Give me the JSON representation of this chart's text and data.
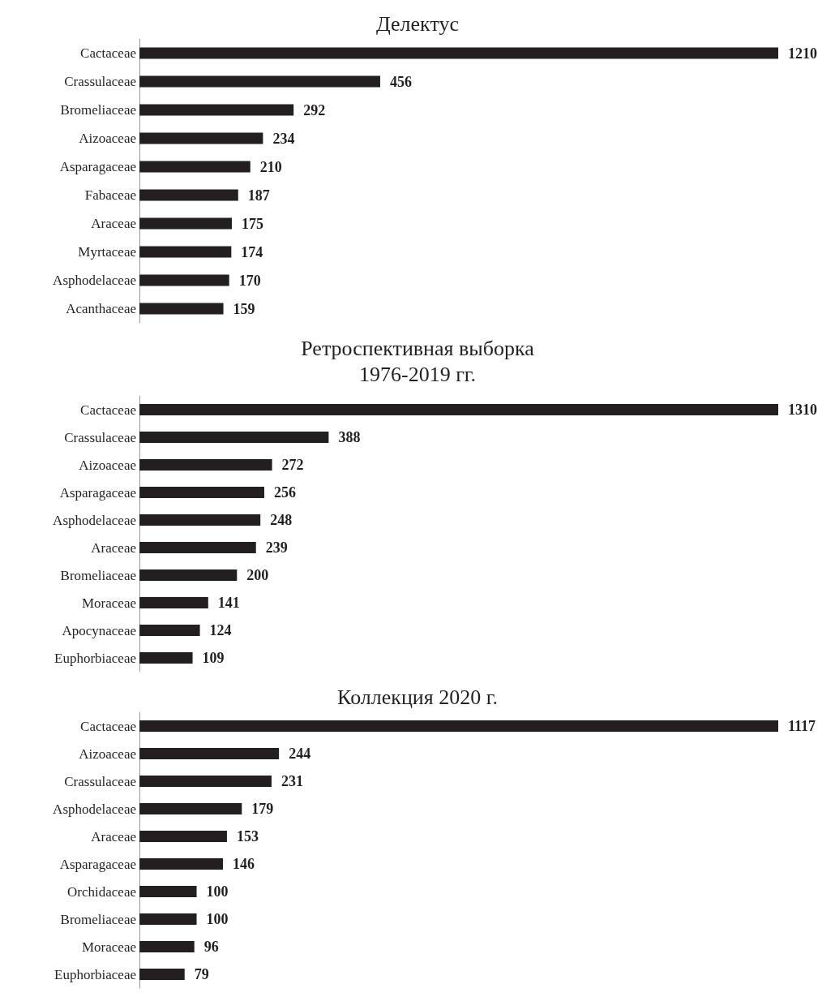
{
  "chart_data": [
    {
      "type": "bar",
      "orientation": "horizontal",
      "title": "Делектус",
      "categories": [
        "Cactaceae",
        "Crassulaceae",
        "Bromeliaceae",
        "Aizoaceae",
        "Asparagaceae",
        "Fabaceae",
        "Araceae",
        "Myrtaceae",
        "Asphodelaceae",
        "Acanthaceae"
      ],
      "values": [
        1210,
        456,
        292,
        234,
        210,
        187,
        175,
        174,
        170,
        159
      ],
      "color": "#231f20",
      "data_labels": true
    },
    {
      "type": "bar",
      "orientation": "horizontal",
      "title": "Ретроспективная выборка\n1976-2019 гг.",
      "categories": [
        "Cactaceae",
        "Crassulaceae",
        "Aizoaceae",
        "Asparagaceae",
        "Asphodelaceae",
        "Araceae",
        "Bromeliaceae",
        "Moraceae",
        "Apocynaceae",
        "Euphorbiaceae"
      ],
      "values": [
        1310,
        388,
        272,
        256,
        248,
        239,
        200,
        141,
        124,
        109
      ],
      "color": "#231f20",
      "data_labels": true
    },
    {
      "type": "bar",
      "orientation": "horizontal",
      "title": "Коллекция 2020 г.",
      "categories": [
        "Cactaceae",
        "Aizoaceae",
        "Crassulaceae",
        "Asphodelaceae",
        "Araceae",
        "Asparagaceae",
        "Orchidaceae",
        "Bromeliaceae",
        "Moraceae",
        "Euphorbiaceae"
      ],
      "values": [
        1117,
        244,
        231,
        179,
        153,
        146,
        100,
        100,
        96,
        79
      ],
      "color": "#231f20",
      "data_labels": true
    }
  ]
}
